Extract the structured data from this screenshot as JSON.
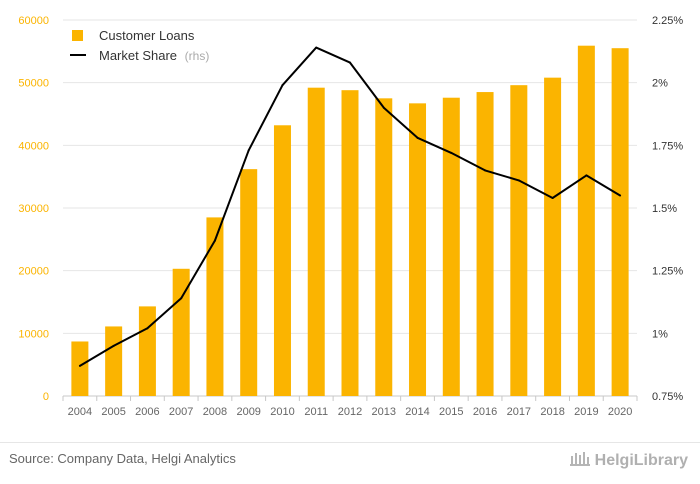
{
  "chart_data": {
    "type": "bar",
    "categories": [
      "2004",
      "2005",
      "2006",
      "2007",
      "2008",
      "2009",
      "2010",
      "2011",
      "2012",
      "2013",
      "2014",
      "2015",
      "2016",
      "2017",
      "2018",
      "2019",
      "2020"
    ],
    "series": [
      {
        "name": "Customer Loans",
        "type": "bar",
        "axis": "left",
        "color": "#fbb400",
        "values": [
          8700,
          11100,
          14300,
          20300,
          28500,
          36200,
          43200,
          49200,
          48800,
          47500,
          46700,
          47600,
          48500,
          49600,
          50800,
          55900,
          55500
        ]
      },
      {
        "name": "Market Share",
        "name_suffix": "(rhs)",
        "type": "line",
        "axis": "right",
        "color": "#000000",
        "values": [
          0.0087,
          0.0095,
          0.0102,
          0.0114,
          0.0137,
          0.0173,
          0.0199,
          0.0214,
          0.0208,
          0.019,
          0.0178,
          0.0172,
          0.0165,
          0.0161,
          0.0154,
          0.0163,
          0.0155
        ]
      }
    ],
    "y_left": {
      "ylim": [
        0,
        60000
      ],
      "ticks": [
        0,
        10000,
        20000,
        30000,
        40000,
        50000,
        60000
      ],
      "tick_labels": [
        "0",
        "10000",
        "20000",
        "30000",
        "40000",
        "50000",
        "60000"
      ],
      "color": "#fbb400"
    },
    "y_right": {
      "ylim": [
        0.0075,
        0.0225
      ],
      "ticks": [
        0.0075,
        0.01,
        0.0125,
        0.015,
        0.0175,
        0.02,
        0.0225
      ],
      "tick_labels": [
        "0.75%",
        "1%",
        "1.25%",
        "1.5%",
        "1.75%",
        "2%",
        "2.25%"
      ]
    },
    "title": "",
    "xlabel": "",
    "ylabel": "",
    "grid": true,
    "legend_position": "top-left"
  },
  "footer": {
    "source": "Source: Company Data, Helgi Analytics",
    "logo_text": "HelgiLibrary"
  },
  "icons": {
    "logo": "library-columns-icon"
  }
}
